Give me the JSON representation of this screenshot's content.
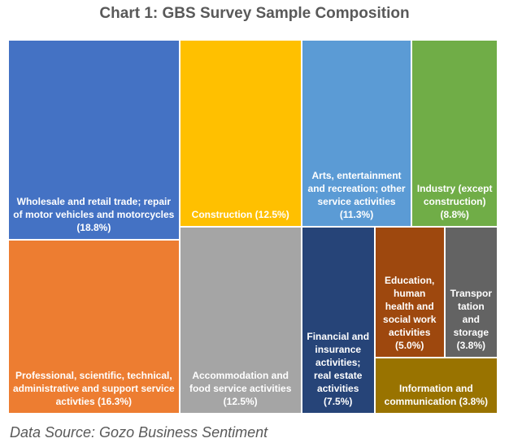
{
  "chart_data": {
    "type": "treemap",
    "title": "Chart 1: GBS Survey Sample Composition",
    "values": [
      18.8,
      16.3,
      12.5,
      12.5,
      11.3,
      8.8,
      7.5,
      5.0,
      3.8,
      3.8
    ],
    "value_labels": [
      "Wholesale and retail trade; repair of motor vehicles and motorcycles (18.8%)",
      "Professional, scientific, technical, administrative and support service activties (16.3%)",
      "Construction (12.5%)",
      "Accommodation and food service activities (12.5%)",
      "Arts, entertainment and recreation; other service activities (11.3%)",
      "Industry (except construction) (8.8%)",
      "Financial and insurance activities; real estate activities (7.5%)",
      "Education, human health and social work activities (5.0%)",
      "Transportation and storage (3.8%)",
      "Information and communication (3.8%)"
    ],
    "colors": [
      "#4472c4",
      "#ed7d31",
      "#ffc000",
      "#a5a5a5",
      "#5b9bd5",
      "#70ad47",
      "#264478",
      "#9e480e",
      "#636363",
      "#997300"
    ],
    "source": "Data Source: Gozo Business Sentiment"
  }
}
